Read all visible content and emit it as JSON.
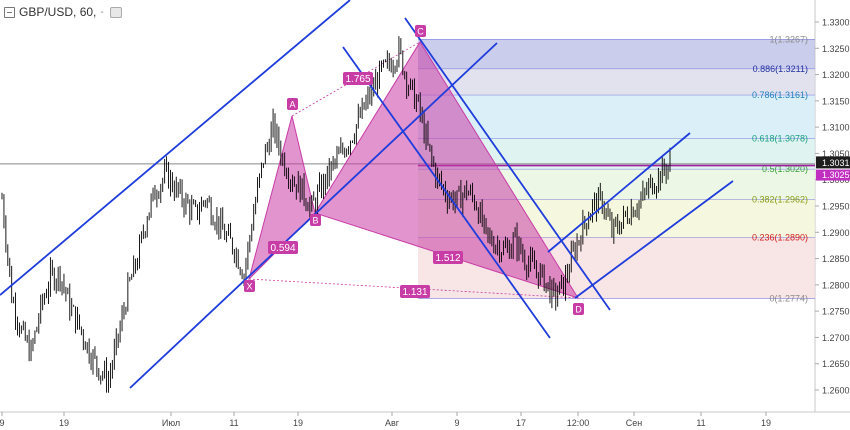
{
  "header": {
    "symbol": "GBP/USD",
    "interval": "60",
    "caret": "-"
  },
  "colors": {
    "wave": "#c83ca6",
    "channel": "#1f3cdc",
    "fib_line": "#6a6adc",
    "price_line": "#a020a0",
    "candle": "#000000",
    "axis_text": "#444444"
  },
  "chart_data": {
    "type": "line",
    "title": "",
    "xlabel": "",
    "ylabel": "",
    "ylim": [
      1.2575,
      1.3375
    ],
    "y_ticks": [
      "1.2600",
      "1.2650",
      "1.2700",
      "1.2750",
      "1.2800",
      "1.2850",
      "1.2900",
      "1.2950",
      "1.3000",
      "1.3050",
      "1.3100",
      "1.3150",
      "1.3200",
      "1.3250",
      "1.3300"
    ],
    "x_ticks": [
      "9",
      "19",
      "Июл",
      "11",
      "19",
      "Авг",
      "9",
      "17",
      "12:00",
      "Сен",
      "11",
      "19"
    ],
    "current_price_label": "1.3031",
    "current_price": 1.3031,
    "second_price_label": "1.3025",
    "second_price": 1.3025,
    "series": [
      {
        "values": [
          1.2965,
          1.278,
          1.271,
          1.267,
          1.2755,
          1.2815,
          1.282,
          1.276,
          1.272,
          1.2675,
          1.264,
          1.262,
          1.27,
          1.279,
          1.285,
          1.2935,
          1.2985,
          1.301,
          1.298,
          1.2955,
          1.2935,
          1.2965,
          1.293,
          1.2895,
          1.287,
          1.282,
          1.294,
          1.304,
          1.31,
          1.304,
          1.3,
          1.298,
          1.2945,
          1.2985,
          1.302,
          1.305,
          1.308,
          1.312,
          1.316,
          1.32,
          1.322,
          1.3245,
          1.318,
          1.314,
          1.306,
          1.3,
          1.297,
          1.296,
          1.298,
          1.2955,
          1.289,
          1.288,
          1.2865,
          1.2885,
          1.285,
          1.283,
          1.281,
          1.2775,
          1.28,
          1.286,
          1.291,
          1.295,
          1.296,
          1.29,
          1.292,
          1.2945,
          1.296,
          1.299,
          1.301,
          1.3031
        ]
      }
    ],
    "harmonic_points": [
      {
        "label": "X",
        "price": 1.2812
      },
      {
        "label": "A",
        "price": 1.3125
      },
      {
        "label": "B",
        "price": 1.2935
      },
      {
        "label": "C",
        "price": 1.3267
      },
      {
        "label": "D",
        "price": 1.2774
      }
    ],
    "ratios": [
      "1.765",
      "0.594",
      "1.512",
      "1.131"
    ],
    "fib_levels": [
      {
        "ratio": 1.0,
        "label": "1(1.3267)",
        "price": 1.3267,
        "color": "#b8bce4",
        "text_color": "#8a8a8a"
      },
      {
        "ratio": 0.886,
        "label": "0.886(1.3211)",
        "price": 1.3211,
        "color": "#d8d8e8",
        "text_color": "#2030a0"
      },
      {
        "ratio": 0.786,
        "label": "0.786(1.3161)",
        "price": 1.3161,
        "color": "#cfe9f5",
        "text_color": "#1f7fbf"
      },
      {
        "ratio": 0.618,
        "label": "0.618(1.3078)",
        "price": 1.3078,
        "color": "#d4f0ec",
        "text_color": "#1aa07e"
      },
      {
        "ratio": 0.5,
        "label": "0.5(1.3020)",
        "price": 1.302,
        "color": "#e6f5dc",
        "text_color": "#3aa23a"
      },
      {
        "ratio": 0.382,
        "label": "0.382(1.2962)",
        "price": 1.2962,
        "color": "#f2f6d4",
        "text_color": "#8a9a14"
      },
      {
        "ratio": 0.236,
        "label": "0.236(1.2890)",
        "price": 1.289,
        "color": "#f6dcdc",
        "text_color": "#d02020"
      },
      {
        "ratio": 0,
        "label": "0(1.2774)",
        "price": 1.2774,
        "color": "#f6dcdc",
        "text_color": "#8a8a8a"
      }
    ]
  }
}
